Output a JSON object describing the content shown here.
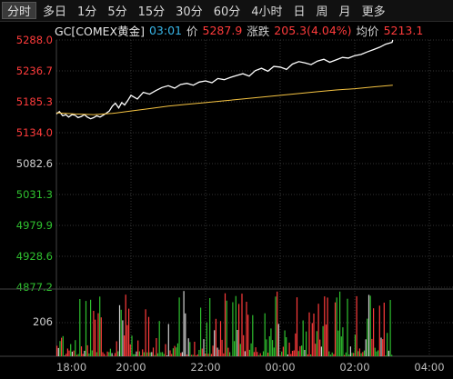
{
  "tabs": [
    "分时",
    "多日",
    "1分",
    "5分",
    "15分",
    "30分",
    "60分",
    "4小时",
    "日",
    "周",
    "月",
    "更多"
  ],
  "active_tab": 0,
  "info": {
    "symbol": "GC[COMEX黄金]",
    "time": "03:01",
    "price_label": "价",
    "price": "5287.9",
    "change_label": "涨跌",
    "change": "205.3(4.04%)",
    "avg_label": "均价",
    "avg": "5213.1"
  },
  "y_labels": [
    "5288.0",
    "5236.7",
    "5185.3",
    "5134.0",
    "5082.6",
    "5031.3",
    "4979.9",
    "4928.6",
    "4877.2"
  ],
  "volume_label": "206",
  "x_labels": [
    "18:00",
    "20:00",
    "22:00",
    "00:00",
    "02:00",
    "04:00"
  ],
  "colors": {
    "up": "#ff3b3b",
    "down": "#2fc02f",
    "neutral": "#d0d0d0",
    "price_line": "#ffffff",
    "avg_line": "#f5c342",
    "grid": "#333333"
  },
  "chart_data": {
    "type": "line",
    "x_labels": [
      "18:00",
      "20:00",
      "22:00",
      "00:00",
      "02:00",
      "04:00"
    ],
    "y_ticks": [
      5288.0,
      5236.7,
      5185.3,
      5134.0,
      5082.6,
      5031.3,
      4979.9,
      4928.6,
      4877.2
    ],
    "ylim": [
      4877.2,
      5288.0
    ],
    "series": [
      {
        "name": "价",
        "x": [
          0,
          0.08,
          0.17,
          0.25,
          0.33,
          0.42,
          0.5,
          0.58,
          0.67,
          0.75,
          0.83,
          0.92,
          1.0,
          1.08,
          1.17,
          1.25,
          1.33,
          1.42,
          1.5,
          1.58,
          1.67,
          1.75,
          1.83,
          1.92,
          2.0,
          2.17,
          2.33,
          2.5,
          2.67,
          2.83,
          3.0,
          3.17,
          3.33,
          3.5,
          3.67,
          3.83,
          4.0,
          4.17,
          4.33,
          4.5,
          4.67,
          4.83,
          5.0,
          5.17,
          5.33,
          5.5,
          5.67,
          5.83,
          6.0,
          6.17,
          6.33,
          6.5,
          6.67,
          6.83,
          7.0,
          7.17,
          7.33,
          7.5,
          7.67,
          7.83,
          8.0,
          8.17,
          8.33,
          8.5,
          8.67,
          8.83,
          9.0,
          9.02
        ],
        "values": [
          5165,
          5169,
          5162,
          5164,
          5160,
          5164,
          5163,
          5159,
          5161,
          5164,
          5160,
          5157,
          5159,
          5162,
          5160,
          5163,
          5166,
          5170,
          5178,
          5183,
          5175,
          5184,
          5180,
          5188,
          5196,
          5190,
          5201,
          5198,
          5204,
          5209,
          5212,
          5208,
          5214,
          5216,
          5213,
          5218,
          5220,
          5217,
          5224,
          5222,
          5226,
          5229,
          5232,
          5228,
          5237,
          5241,
          5236,
          5244,
          5243,
          5239,
          5248,
          5252,
          5250,
          5247,
          5253,
          5256,
          5251,
          5255,
          5259,
          5258,
          5262,
          5264,
          5268,
          5272,
          5276,
          5281,
          5284,
          5288
        ]
      },
      {
        "name": "均价",
        "x": [
          0,
          0.5,
          1.0,
          1.5,
          2.0,
          2.5,
          3.0,
          3.5,
          4.0,
          4.5,
          5.0,
          5.5,
          6.0,
          6.5,
          7.0,
          7.5,
          8.0,
          8.5,
          9.02
        ],
        "values": [
          5167,
          5165,
          5164,
          5166,
          5170,
          5174,
          5178,
          5181,
          5184,
          5187,
          5190,
          5193,
          5196,
          5199,
          5202,
          5205,
          5207,
          5210,
          5213
        ]
      }
    ],
    "volume": {
      "label": "206",
      "bars": 220
    }
  }
}
